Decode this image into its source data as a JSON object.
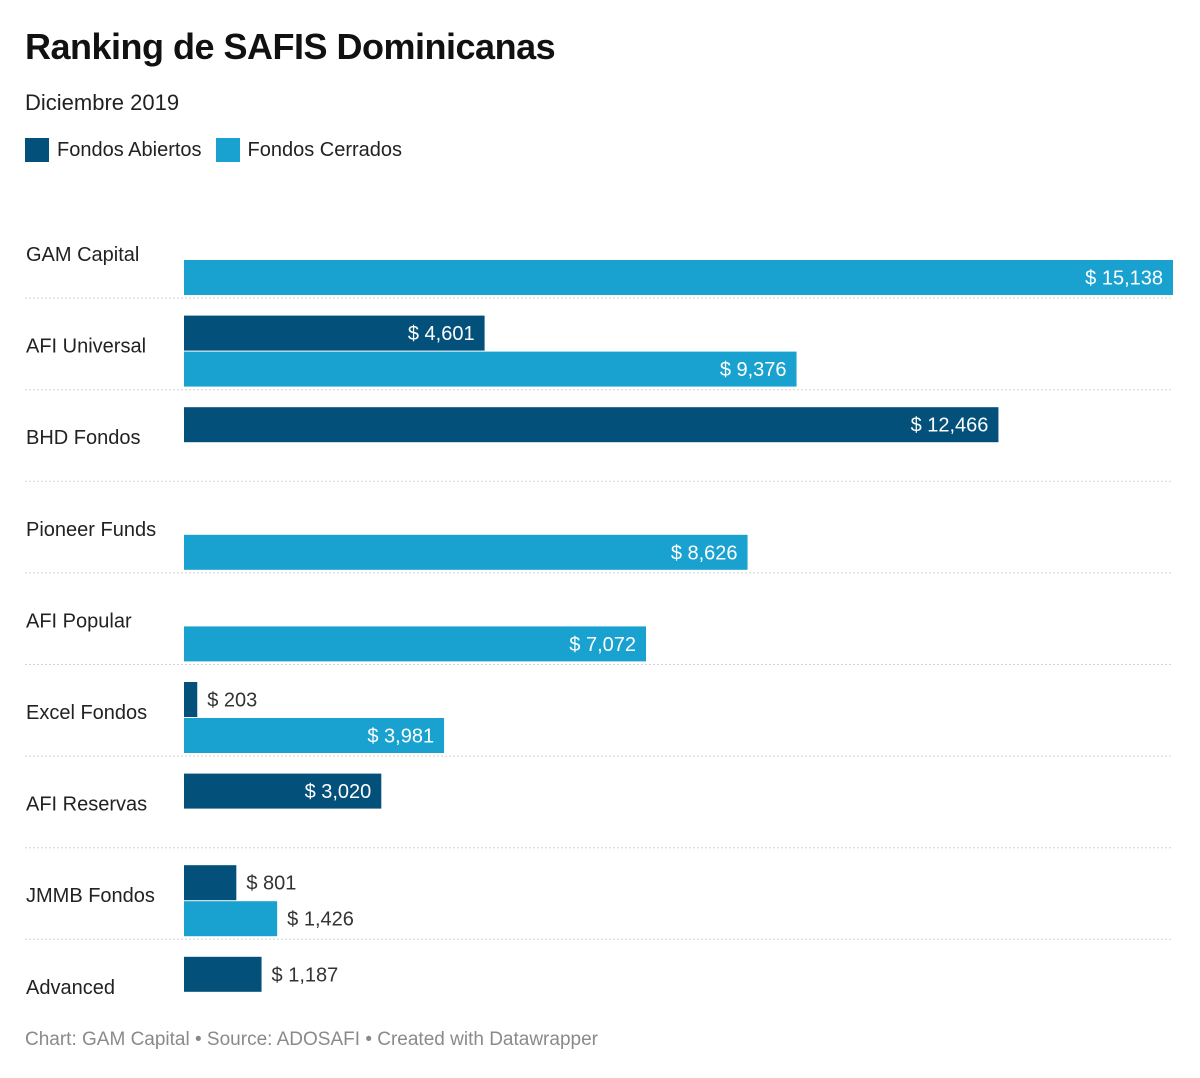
{
  "title": "Ranking de SAFIS Dominicanas",
  "subtitle": "Diciembre 2019",
  "footer": "Chart: GAM Capital • Source: ADOSAFI • Created with Datawrapper",
  "colors": {
    "abiertos": "#03507a",
    "cerrados": "#19a2d0"
  },
  "chart_data": {
    "type": "bar",
    "orientation": "horizontal",
    "categories": [
      "GAM Capital",
      "AFI Universal",
      "BHD Fondos",
      "Pioneer Funds",
      "AFI Popular",
      "Excel Fondos",
      "AFI Reservas",
      "JMMB Fondos",
      "Advanced"
    ],
    "series": [
      {
        "name": "Fondos Abiertos",
        "values": [
          null,
          4601,
          12466,
          null,
          null,
          203,
          3020,
          801,
          1187
        ],
        "labels": [
          "",
          "$ 4,601",
          "$ 12,466",
          "",
          "",
          "$ 203",
          "$ 3,020",
          "$ 801",
          "$ 1,187"
        ]
      },
      {
        "name": "Fondos Cerrados",
        "values": [
          15138,
          9376,
          null,
          8626,
          7072,
          3981,
          null,
          1426,
          null
        ],
        "labels": [
          "$ 15,138",
          "$ 9,376",
          "",
          "$ 8,626",
          "$ 7,072",
          "$ 3,981",
          "",
          "$ 1,426",
          ""
        ]
      }
    ],
    "xlim": [
      0,
      15138
    ],
    "legend_position": "top-left"
  }
}
